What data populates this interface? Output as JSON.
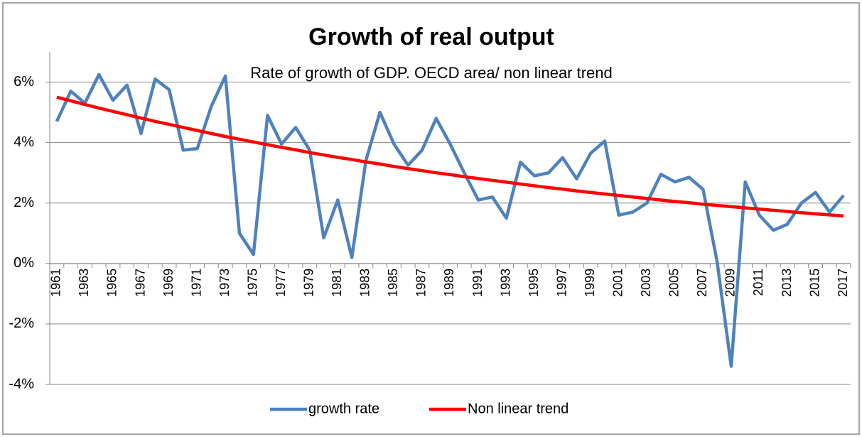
{
  "chart_data": {
    "type": "line",
    "title": "Growth of real output",
    "subtitle": "Rate of growth of GDP. OECD area/ non linear trend",
    "categories": [
      "1961",
      null,
      "1963",
      null,
      "1965",
      null,
      "1967",
      null,
      "1969",
      null,
      "1971",
      null,
      "1973",
      null,
      "1975",
      null,
      "1977",
      null,
      "1979",
      null,
      "1981",
      null,
      "1983",
      null,
      "1985",
      null,
      "1987",
      null,
      "1989",
      null,
      "1991",
      null,
      "1993",
      null,
      "1995",
      null,
      "1997",
      null,
      "1999",
      null,
      "2001",
      null,
      "2003",
      null,
      "2005",
      null,
      "2007",
      null,
      "2009",
      null,
      "2011",
      null,
      "2013",
      null,
      "2015",
      null,
      "2017"
    ],
    "series": [
      {
        "name": "growth rate",
        "color": "#4f81bd",
        "values": [
          4.7,
          5.7,
          5.3,
          6.25,
          5.4,
          5.9,
          4.3,
          6.1,
          5.75,
          3.75,
          3.8,
          5.2,
          6.2,
          1.0,
          0.3,
          4.9,
          3.95,
          4.5,
          3.75,
          0.85,
          2.1,
          0.2,
          3.4,
          5.0,
          3.95,
          3.25,
          3.75,
          4.8,
          3.95,
          3.0,
          2.1,
          2.2,
          1.5,
          3.35,
          2.9,
          3.0,
          3.5,
          2.8,
          3.65,
          4.05,
          1.6,
          1.7,
          2.0,
          2.95,
          2.7,
          2.85,
          2.45,
          0.05,
          -3.4,
          2.7,
          1.6,
          1.1,
          1.3,
          2.0,
          2.35,
          1.7,
          2.25
        ]
      },
      {
        "name": "Non linear trend",
        "color": "#ff0000",
        "values": [
          5.5,
          5.38,
          5.26,
          5.14,
          5.03,
          4.92,
          4.81,
          4.7,
          4.6,
          4.5,
          4.4,
          4.3,
          4.2,
          4.11,
          4.02,
          3.93,
          3.84,
          3.76,
          3.67,
          3.59,
          3.51,
          3.44,
          3.36,
          3.29,
          3.21,
          3.14,
          3.07,
          3.0,
          2.94,
          2.87,
          2.81,
          2.75,
          2.69,
          2.63,
          2.57,
          2.51,
          2.46,
          2.4,
          2.35,
          2.3,
          2.25,
          2.2,
          2.15,
          2.1,
          2.05,
          2.01,
          1.96,
          1.92,
          1.88,
          1.84,
          1.8,
          1.76,
          1.72,
          1.68,
          1.64,
          1.61,
          1.57
        ]
      }
    ],
    "ylim": [
      -4,
      7
    ],
    "yticks": [
      {
        "value": -4,
        "label": "-4%"
      },
      {
        "value": -2,
        "label": "-2%"
      },
      {
        "value": 0,
        "label": "0%"
      },
      {
        "value": 2,
        "label": "2%"
      },
      {
        "value": 4,
        "label": "4%"
      },
      {
        "value": 6,
        "label": "6%"
      }
    ],
    "grid": true,
    "legend": "bottom"
  }
}
